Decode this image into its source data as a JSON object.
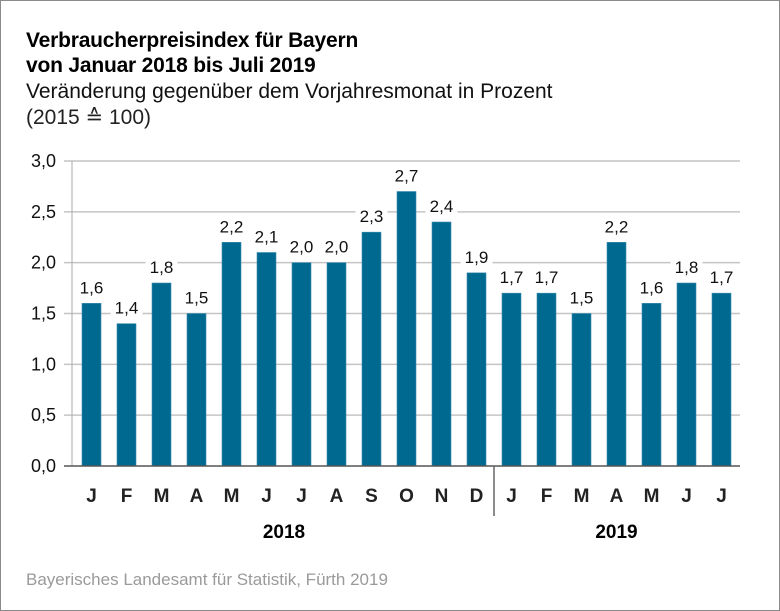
{
  "chart_data": {
    "type": "bar",
    "title": "Verbraucherpreisindex für Bayern",
    "title_line2": "von Januar 2018 bis Juli 2019",
    "subtitle": "Veränderung gegenüber dem Vorjahresmonat in Prozent",
    "unit_note": "(2015 ≙ 100)",
    "xlabel": "",
    "ylabel": "",
    "ylim": [
      0,
      3.0
    ],
    "yticks": [
      0,
      0.5,
      1.0,
      1.5,
      2.0,
      2.5,
      3.0
    ],
    "ytick_labels": [
      "0,0",
      "0,5",
      "1,0",
      "1,5",
      "2,0",
      "2,5",
      "3,0"
    ],
    "grid": true,
    "categories": [
      "J",
      "F",
      "M",
      "A",
      "M",
      "J",
      "J",
      "A",
      "S",
      "O",
      "N",
      "D",
      "J",
      "F",
      "M",
      "A",
      "M",
      "J",
      "J"
    ],
    "years": [
      {
        "label": "2018",
        "months": 12
      },
      {
        "label": "2019",
        "months": 7
      }
    ],
    "values": [
      1.6,
      1.4,
      1.8,
      1.5,
      2.2,
      2.1,
      2.0,
      2.0,
      2.3,
      2.7,
      2.4,
      1.9,
      1.7,
      1.7,
      1.5,
      2.2,
      1.6,
      1.8,
      1.7
    ],
    "value_labels": [
      "1,6",
      "1,4",
      "1,8",
      "1,5",
      "2,2",
      "2,1",
      "2,0",
      "2,0",
      "2,3",
      "2,7",
      "2,4",
      "1,9",
      "1,7",
      "1,7",
      "1,5",
      "2,2",
      "1,6",
      "1,8",
      "1,7"
    ],
    "bar_color": "#00698f",
    "grid_color": "#c4c4c4"
  },
  "source": "Bayerisches Landesamt für Statistik, Fürth 2019"
}
